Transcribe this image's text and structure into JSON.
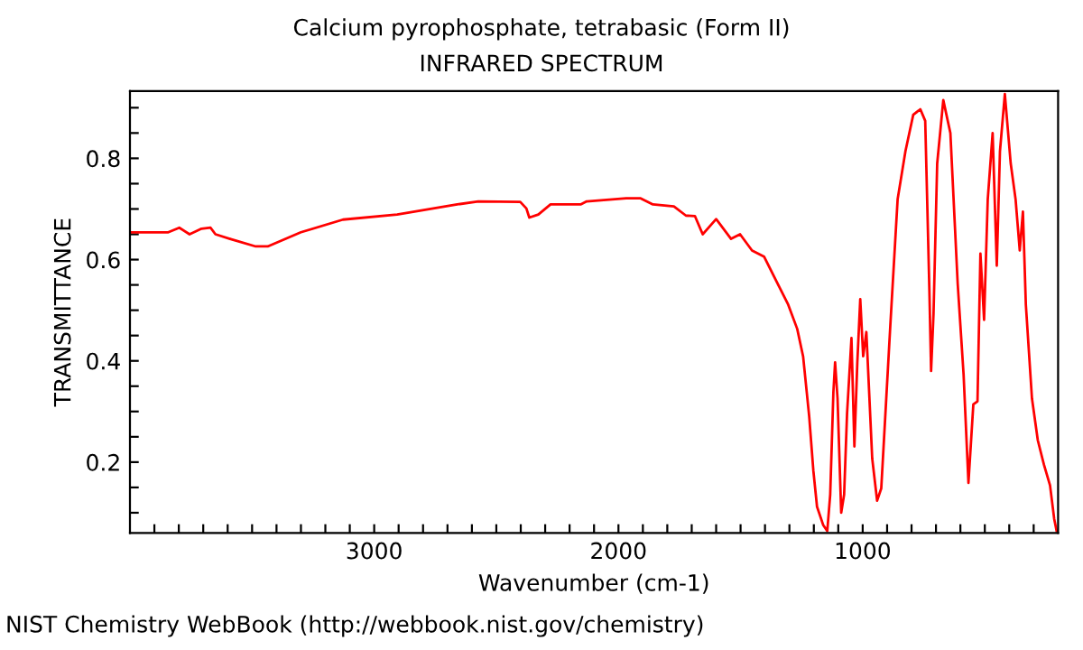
{
  "chart_data": {
    "type": "line",
    "title": "Calcium pyrophosphate, tetrabasic (Form II)",
    "subtitle": "INFRARED SPECTRUM",
    "xlabel": "Wavenumber (cm-1)",
    "ylabel": "TRANSMITTANCE",
    "annotations": [
      "NIST Chemistry WebBook (http://webbook.nist.gov/chemistry)"
    ],
    "xlim": [
      4000,
      200
    ],
    "ylim": [
      0.06,
      0.933
    ],
    "xticks": [
      {
        "value": 3900,
        "label": null
      },
      {
        "value": 3800,
        "label": null
      },
      {
        "value": 3700,
        "label": null
      },
      {
        "value": 3600,
        "label": null
      },
      {
        "value": 3500,
        "label": null
      },
      {
        "value": 3400,
        "label": null
      },
      {
        "value": 3300,
        "label": null
      },
      {
        "value": 3200,
        "label": null
      },
      {
        "value": 3100,
        "label": null
      },
      3000,
      {
        "value": 2900,
        "label": null
      },
      {
        "value": 2800,
        "label": null
      },
      {
        "value": 2700,
        "label": null
      },
      {
        "value": 2600,
        "label": null
      },
      {
        "value": 2500,
        "label": null
      },
      {
        "value": 2400,
        "label": null
      },
      {
        "value": 2300,
        "label": null
      },
      {
        "value": 2200,
        "label": null
      },
      {
        "value": 2100,
        "label": null
      },
      2000,
      {
        "value": 1900,
        "label": null
      },
      {
        "value": 1800,
        "label": null
      },
      {
        "value": 1700,
        "label": null
      },
      {
        "value": 1600,
        "label": null
      },
      {
        "value": 1500,
        "label": null
      },
      {
        "value": 1400,
        "label": null
      },
      {
        "value": 1300,
        "label": null
      },
      {
        "value": 1200,
        "label": null
      },
      {
        "value": 1100,
        "label": null
      },
      1000,
      {
        "value": 900,
        "label": null
      },
      {
        "value": 800,
        "label": null
      },
      {
        "value": 700,
        "label": null
      },
      {
        "value": 600,
        "label": null
      },
      {
        "value": 500,
        "label": null
      },
      {
        "value": 400,
        "label": null
      },
      {
        "value": 300,
        "label": null
      }
    ],
    "yticks": [
      {
        "value": 0.1,
        "label": null
      },
      {
        "value": 0.15,
        "label": null
      },
      0.2,
      {
        "value": 0.25,
        "label": null
      },
      {
        "value": 0.3,
        "label": null
      },
      {
        "value": 0.35,
        "label": null
      },
      0.4,
      {
        "value": 0.45,
        "label": null
      },
      {
        "value": 0.5,
        "label": null
      },
      {
        "value": 0.55,
        "label": null
      },
      0.6,
      {
        "value": 0.65,
        "label": null
      },
      {
        "value": 0.7,
        "label": null
      },
      {
        "value": 0.75,
        "label": null
      },
      0.8,
      {
        "value": 0.85,
        "label": null
      },
      {
        "value": 0.9,
        "label": null
      }
    ],
    "grid": false,
    "legend": false,
    "marker": "none",
    "line_style": "solid",
    "series": [
      {
        "color": "#ff0000",
        "x": [
          3995,
          3843,
          3798,
          3756,
          3707,
          3670,
          3650,
          3584,
          3485,
          3436,
          3300,
          3128,
          2906,
          2660,
          2574,
          2402,
          2377,
          2365,
          2328,
          2278,
          2155,
          2130,
          1968,
          1909,
          1859,
          1773,
          1724,
          1687,
          1655,
          1600,
          1539,
          1502,
          1453,
          1404,
          1354,
          1305,
          1268,
          1244,
          1219,
          1202,
          1187,
          1162,
          1145,
          1133,
          1120,
          1113,
          1103,
          1088,
          1076,
          1064,
          1046,
          1034,
          1022,
          1010,
          998,
          985,
          961,
          941,
          924,
          887,
          857,
          825,
          793,
          764,
          744,
          727,
          720,
          710,
          695,
          670,
          641,
          611,
          587,
          567,
          547,
          530,
          518,
          503,
          488,
          468,
          451,
          438,
          418,
          394,
          374,
          357,
          344,
          332,
          307,
          283,
          258,
          233,
          216,
          206
        ],
        "values": [
          0.654,
          0.654,
          0.663,
          0.65,
          0.661,
          0.663,
          0.65,
          0.64,
          0.626,
          0.626,
          0.654,
          0.679,
          0.689,
          0.709,
          0.715,
          0.714,
          0.701,
          0.683,
          0.689,
          0.709,
          0.709,
          0.715,
          0.721,
          0.721,
          0.709,
          0.705,
          0.687,
          0.686,
          0.65,
          0.68,
          0.641,
          0.65,
          0.618,
          0.606,
          0.558,
          0.511,
          0.463,
          0.409,
          0.29,
          0.183,
          0.112,
          0.076,
          0.064,
          0.136,
          0.338,
          0.397,
          0.326,
          0.1,
          0.136,
          0.296,
          0.445,
          0.231,
          0.397,
          0.522,
          0.409,
          0.457,
          0.207,
          0.124,
          0.148,
          0.469,
          0.719,
          0.814,
          0.886,
          0.897,
          0.874,
          0.54,
          0.38,
          0.493,
          0.79,
          0.915,
          0.85,
          0.552,
          0.374,
          0.159,
          0.314,
          0.32,
          0.612,
          0.481,
          0.719,
          0.85,
          0.588,
          0.814,
          0.927,
          0.79,
          0.719,
          0.618,
          0.695,
          0.511,
          0.326,
          0.243,
          0.195,
          0.154,
          0.088,
          0.064
        ]
      }
    ]
  }
}
